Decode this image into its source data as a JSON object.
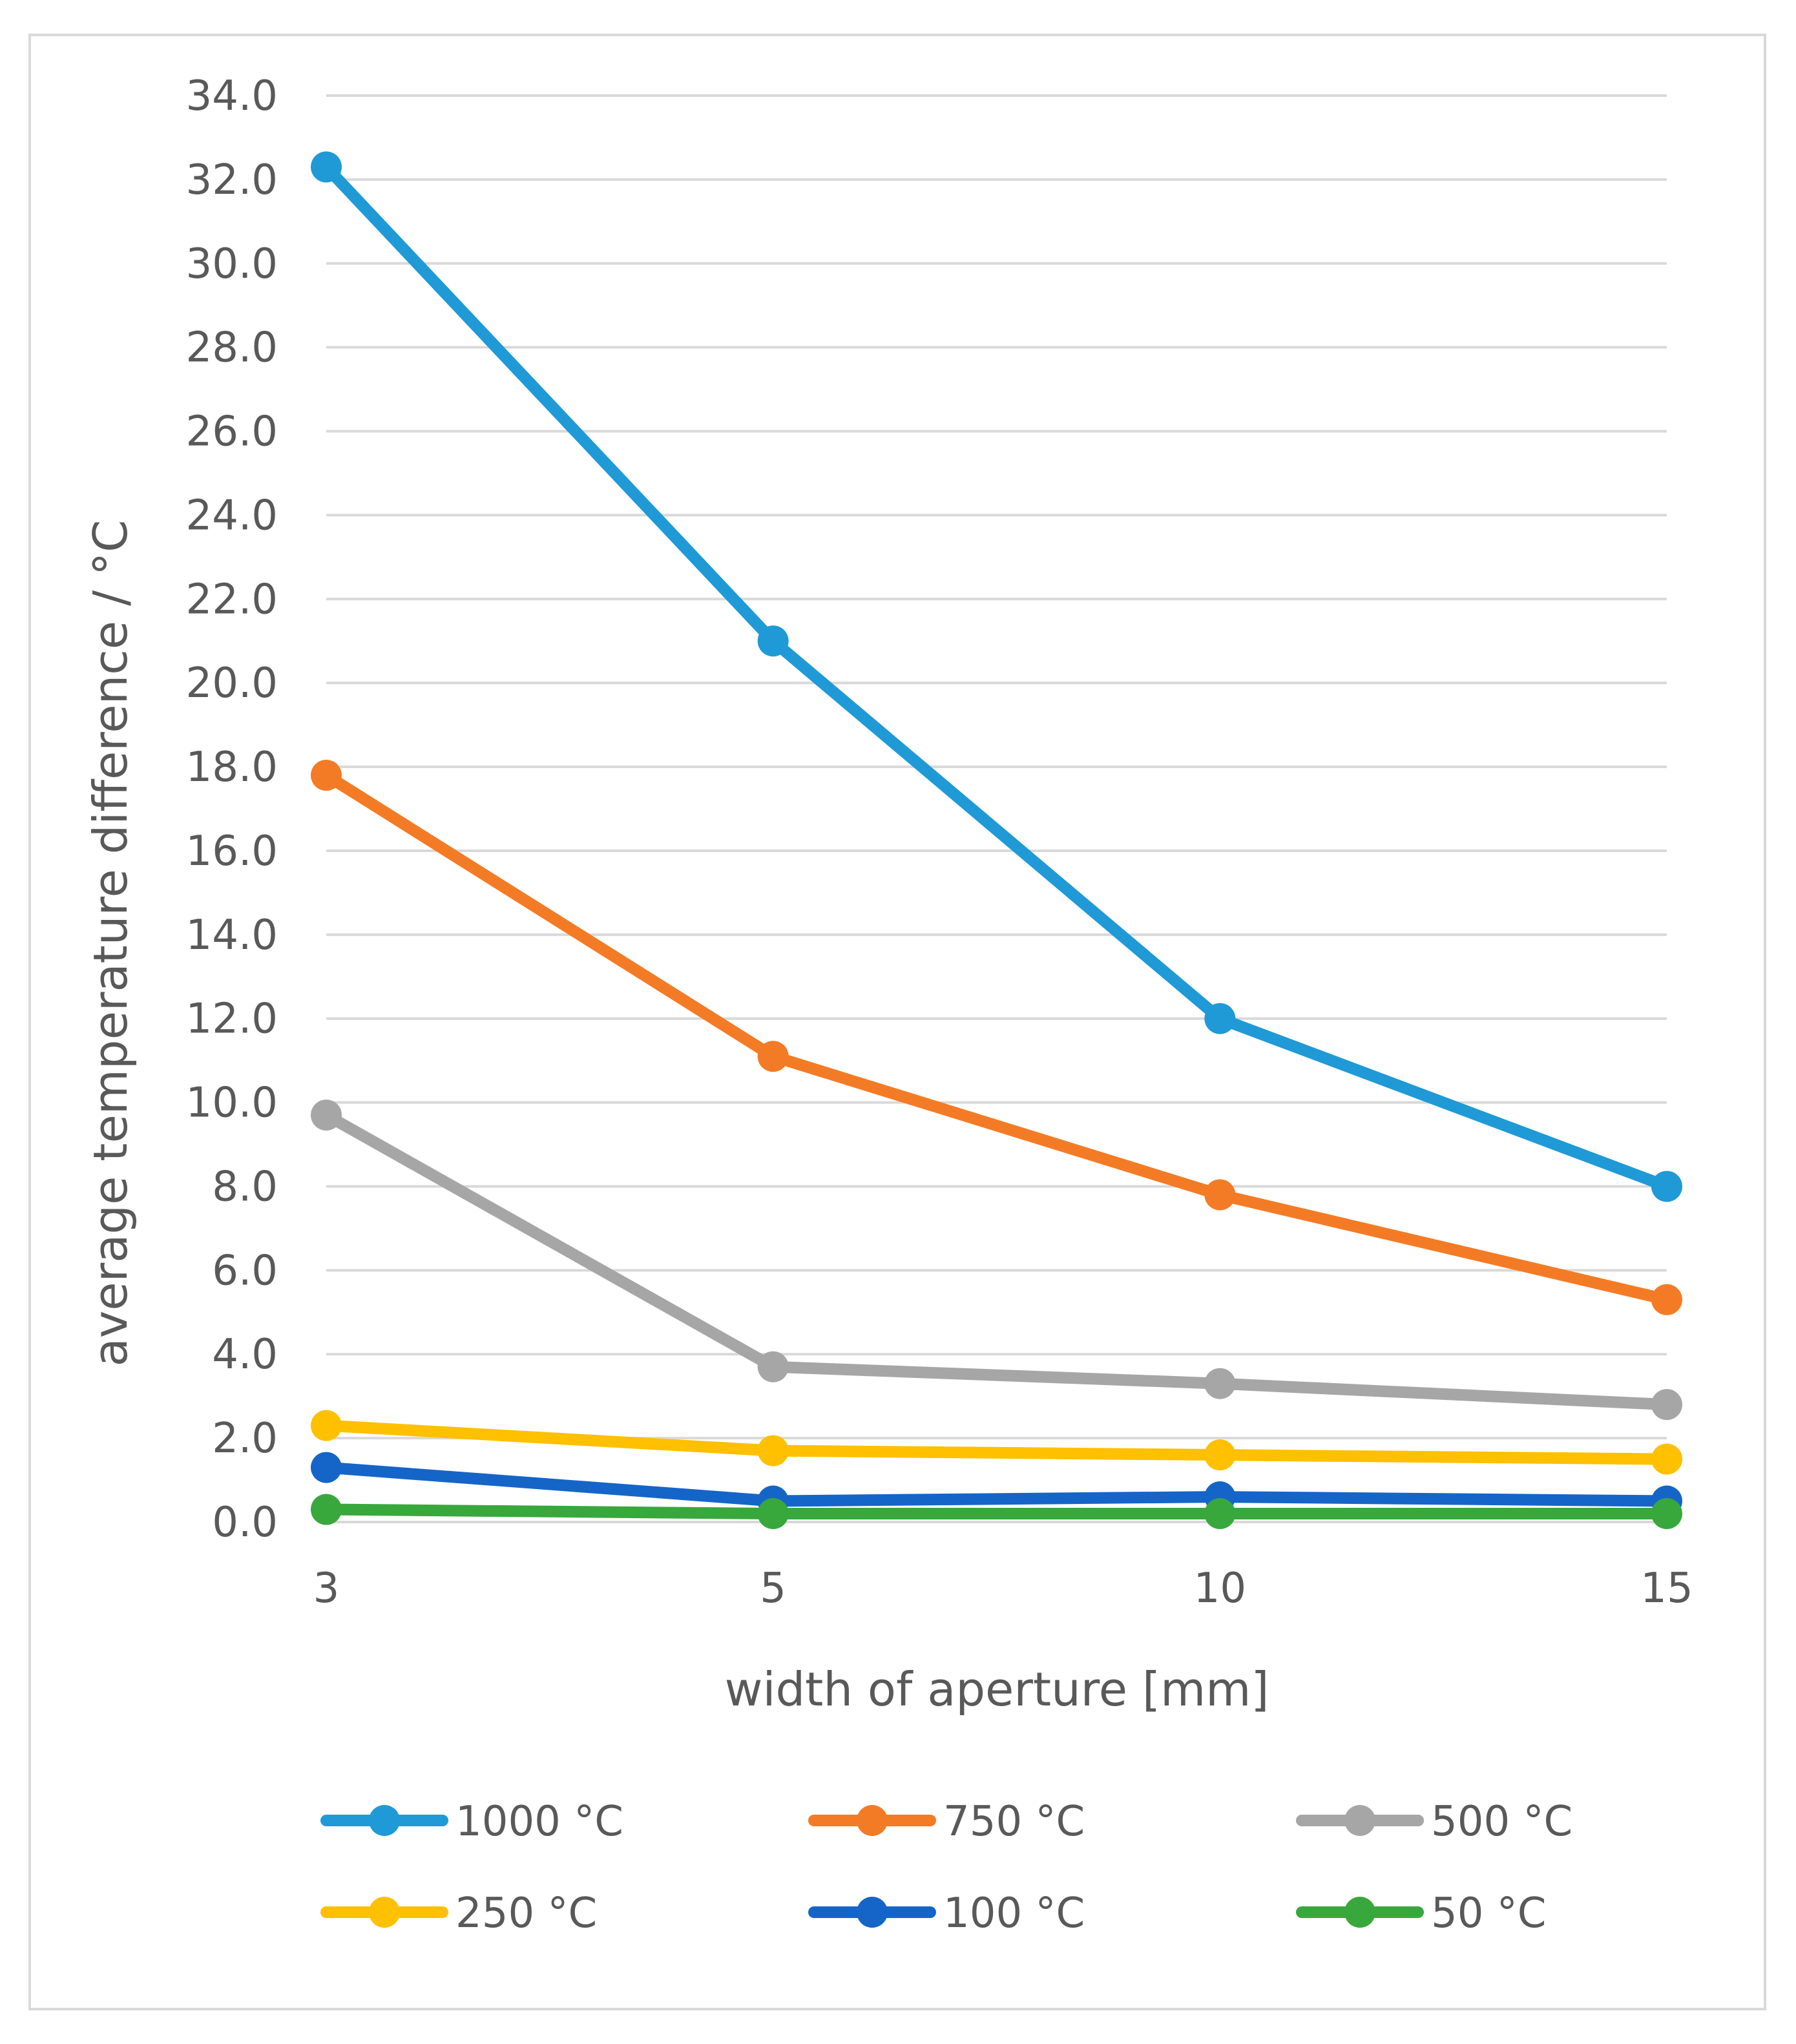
{
  "chart_data": {
    "type": "line",
    "title": "",
    "xlabel": "width of aperture [mm]",
    "ylabel": "average temperature difference / °C",
    "categories": [
      "3",
      "5",
      "10",
      "15"
    ],
    "ylim": [
      0,
      34
    ],
    "ytick_step": 2,
    "ytick_decimals": 1,
    "grid": true,
    "legend_position": "bottom",
    "series": [
      {
        "name": "1000 °C",
        "color": "#1f9ad6",
        "values": [
          32.3,
          21.0,
          12.0,
          8.0
        ]
      },
      {
        "name": "750 °C",
        "color": "#f47b25",
        "values": [
          17.8,
          11.1,
          7.8,
          5.3
        ]
      },
      {
        "name": "500 °C",
        "color": "#a6a6a6",
        "values": [
          9.7,
          3.7,
          3.3,
          2.8
        ]
      },
      {
        "name": "250 °C",
        "color": "#ffc000",
        "values": [
          2.3,
          1.7,
          1.6,
          1.5
        ]
      },
      {
        "name": "100 °C",
        "color": "#1565c8",
        "values": [
          1.3,
          0.5,
          0.6,
          0.5
        ]
      },
      {
        "name": "50 °C",
        "color": "#38a83c",
        "values": [
          0.3,
          0.2,
          0.2,
          0.2
        ]
      }
    ]
  }
}
